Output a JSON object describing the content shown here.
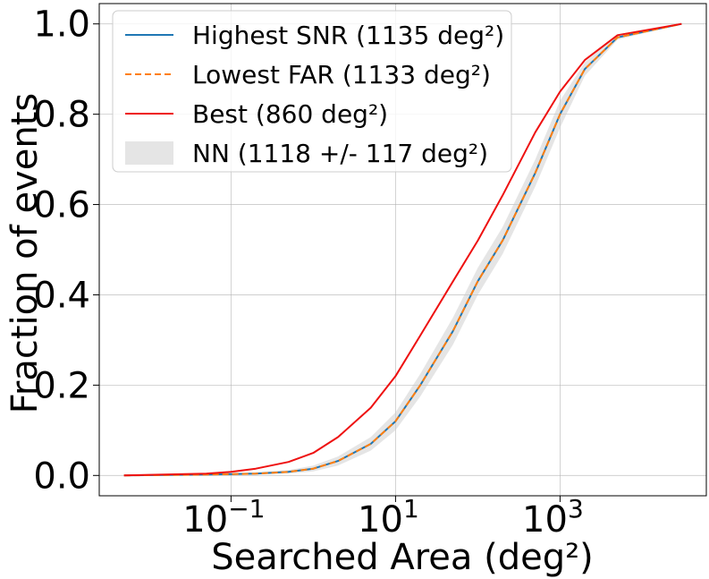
{
  "chart_data": {
    "type": "line",
    "title": "",
    "xlabel": "Searched Area (deg²)",
    "ylabel": "Fraction of events",
    "x_scale": "log",
    "xlim": [
      0.0025,
      60000
    ],
    "ylim": [
      -0.045,
      1.045
    ],
    "x_ticks": [
      {
        "value": 0.1,
        "base": "10",
        "exp": "−1"
      },
      {
        "value": 10,
        "base": "10",
        "exp": "1"
      },
      {
        "value": 1000,
        "base": "10",
        "exp": "3"
      }
    ],
    "y_ticks": [
      {
        "value": 0.0,
        "label": "0.0"
      },
      {
        "value": 0.2,
        "label": "0.2"
      },
      {
        "value": 0.4,
        "label": "0.4"
      },
      {
        "value": 0.6,
        "label": "0.6"
      },
      {
        "value": 0.8,
        "label": "0.8"
      },
      {
        "value": 1.0,
        "label": "1.0"
      }
    ],
    "grid": true,
    "legend_position": "upper-left",
    "series": [
      {
        "name": "Highest SNR (1135 deg²)",
        "color": "#1f77b4",
        "style": "solid",
        "x": [
          0.005,
          0.05,
          0.2,
          0.5,
          1,
          2,
          5,
          10,
          20,
          50,
          100,
          200,
          500,
          1000,
          2000,
          5000,
          30000
        ],
        "y": [
          0.0,
          0.002,
          0.004,
          0.008,
          0.015,
          0.032,
          0.07,
          0.12,
          0.2,
          0.32,
          0.43,
          0.52,
          0.67,
          0.8,
          0.9,
          0.97,
          1.0
        ]
      },
      {
        "name": "Lowest FAR (1133 deg²)",
        "color": "#ff7f0e",
        "style": "dashed",
        "x": [
          0.005,
          0.05,
          0.2,
          0.5,
          1,
          2,
          5,
          10,
          20,
          50,
          100,
          200,
          500,
          1000,
          2000,
          5000,
          30000
        ],
        "y": [
          0.0,
          0.002,
          0.004,
          0.008,
          0.015,
          0.032,
          0.07,
          0.12,
          0.2,
          0.32,
          0.43,
          0.52,
          0.67,
          0.8,
          0.9,
          0.97,
          1.0
        ]
      },
      {
        "name": "Best (860 deg²)",
        "color": "#ee1111",
        "style": "solid",
        "x": [
          0.005,
          0.05,
          0.1,
          0.2,
          0.5,
          1,
          2,
          5,
          10,
          20,
          50,
          100,
          200,
          500,
          1000,
          2000,
          5000,
          30000
        ],
        "y": [
          0.0,
          0.004,
          0.008,
          0.015,
          0.03,
          0.05,
          0.085,
          0.15,
          0.22,
          0.31,
          0.43,
          0.52,
          0.62,
          0.76,
          0.85,
          0.92,
          0.975,
          1.0
        ]
      },
      {
        "name": "NN (1118 +/- 117 deg²)",
        "color": "#cccccc",
        "style": "band",
        "x": [
          0.005,
          0.05,
          0.2,
          0.5,
          1,
          2,
          5,
          10,
          20,
          50,
          100,
          200,
          500,
          1000,
          2000,
          5000,
          30000
        ],
        "y_low": [
          0.0,
          0.0,
          0.002,
          0.004,
          0.009,
          0.022,
          0.055,
          0.1,
          0.175,
          0.29,
          0.4,
          0.49,
          0.64,
          0.77,
          0.885,
          0.965,
          1.0
        ],
        "y_high": [
          0.0,
          0.004,
          0.007,
          0.012,
          0.022,
          0.042,
          0.085,
          0.14,
          0.225,
          0.35,
          0.46,
          0.55,
          0.7,
          0.83,
          0.915,
          0.977,
          1.0
        ]
      }
    ]
  }
}
